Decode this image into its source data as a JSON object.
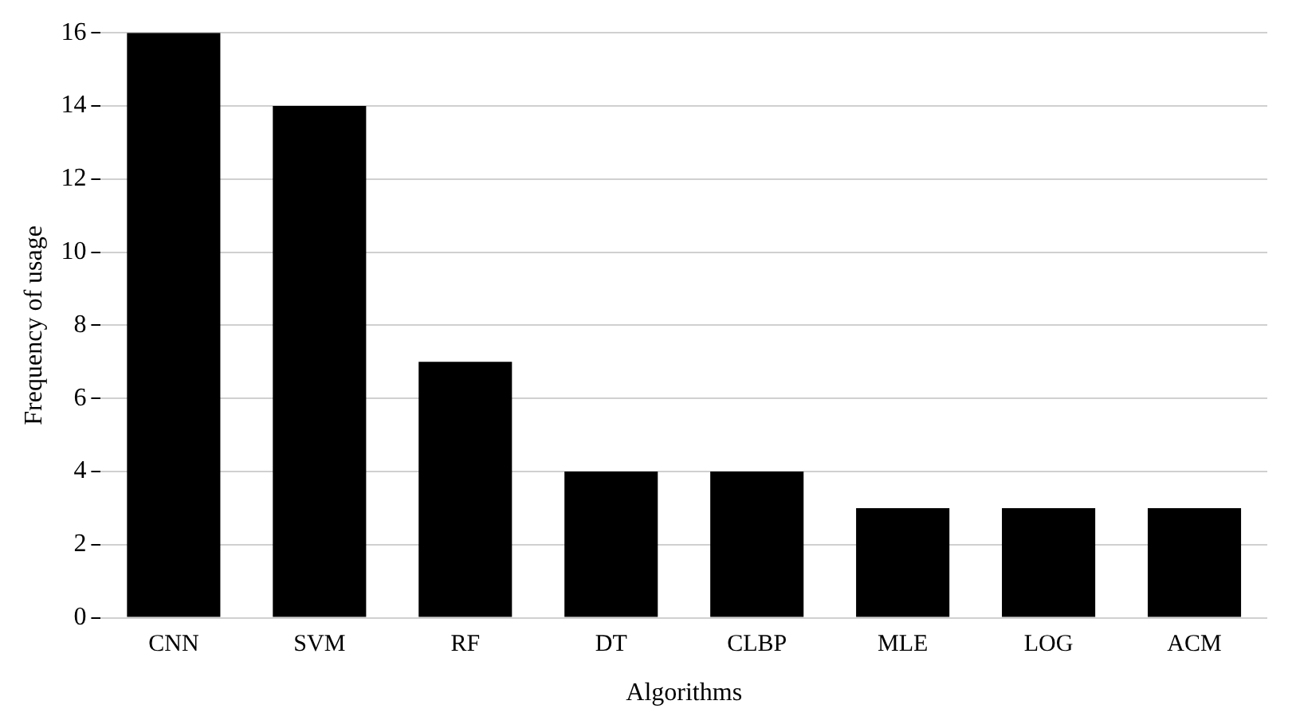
{
  "chart_data": {
    "type": "bar",
    "xlabel": "Algorithms",
    "ylabel": "Frequency of usage",
    "categories": [
      "CNN",
      "SVM",
      "RF",
      "DT",
      "CLBP",
      "MLE",
      "LOG",
      "ACM"
    ],
    "values": [
      16,
      14,
      7,
      4,
      4,
      3,
      3,
      3
    ],
    "color": "#000000",
    "ylim": [
      0,
      16
    ],
    "yticks": [
      0,
      2,
      4,
      6,
      8,
      10,
      12,
      14,
      16
    ],
    "grid": "y",
    "legend": false
  }
}
